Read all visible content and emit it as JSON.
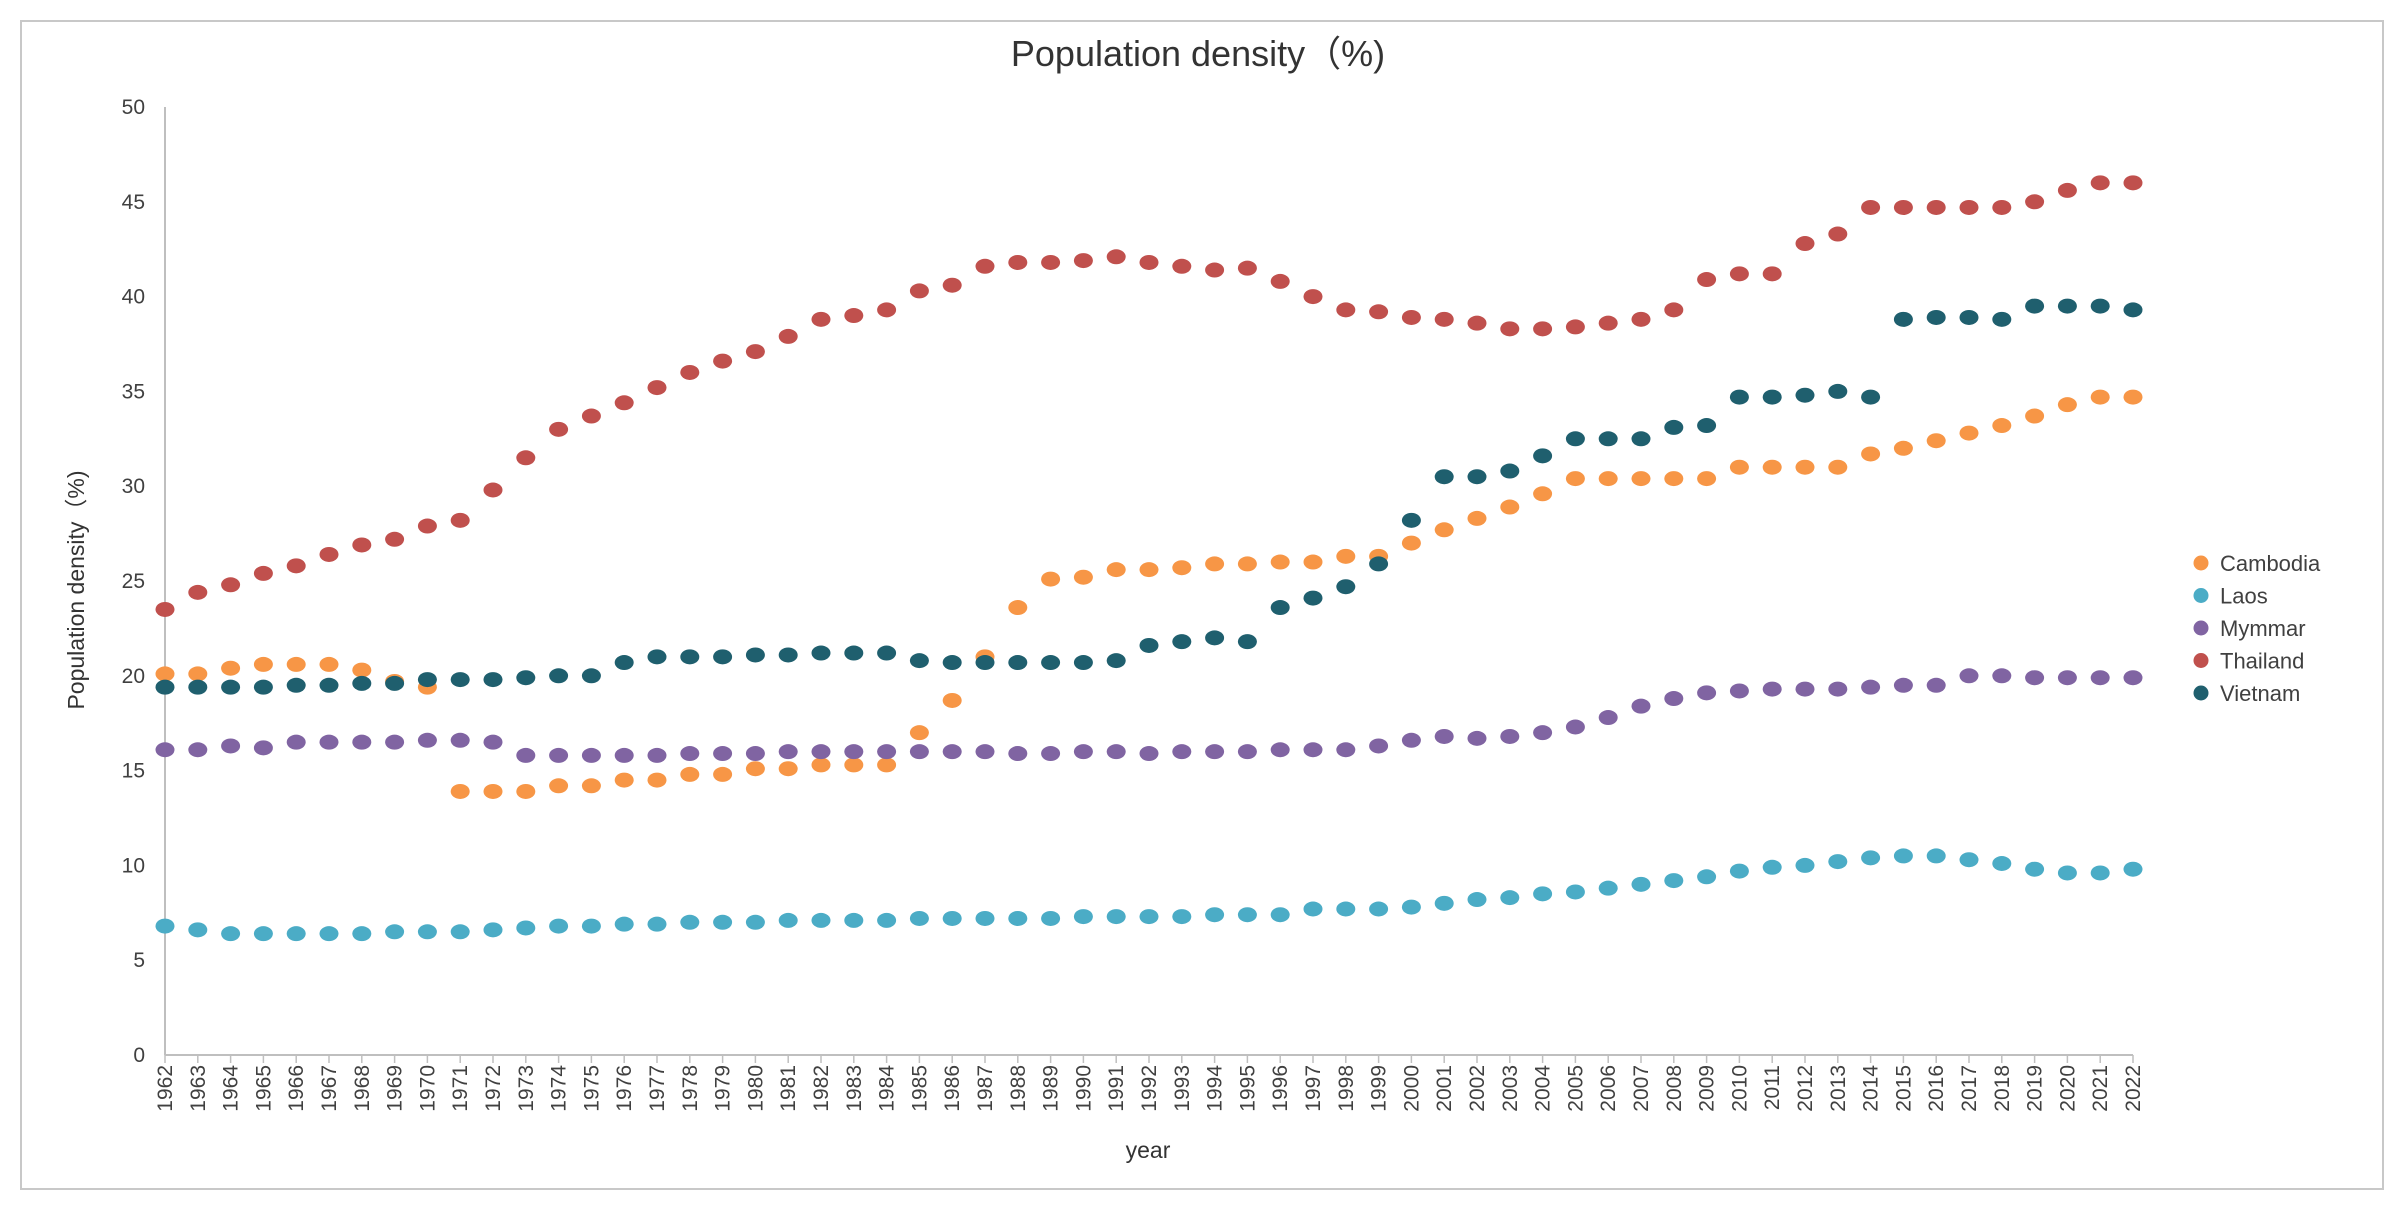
{
  "chart_data": {
    "type": "scatter",
    "title": "Population density（%)",
    "xlabel": "year",
    "ylabel": "Population density（%)",
    "ylim": [
      0,
      50
    ],
    "yticks": [
      0,
      5,
      10,
      15,
      20,
      25,
      30,
      35,
      40,
      45,
      50
    ],
    "legend_position": "right",
    "grid": false,
    "x": [
      1962,
      1963,
      1964,
      1965,
      1966,
      1967,
      1968,
      1969,
      1970,
      1971,
      1972,
      1973,
      1974,
      1975,
      1976,
      1977,
      1978,
      1979,
      1980,
      1981,
      1982,
      1983,
      1984,
      1985,
      1986,
      1987,
      1988,
      1989,
      1990,
      1991,
      1992,
      1993,
      1994,
      1995,
      1996,
      1997,
      1998,
      1999,
      2000,
      2001,
      2002,
      2003,
      2004,
      2005,
      2006,
      2007,
      2008,
      2009,
      2010,
      2011,
      2012,
      2013,
      2014,
      2015,
      2016,
      2017,
      2018,
      2019,
      2020,
      2021,
      2022
    ],
    "series": [
      {
        "name": "Cambodia",
        "color": "#F79646",
        "values": [
          20.1,
          20.1,
          20.4,
          20.6,
          20.6,
          20.6,
          20.3,
          19.7,
          19.4,
          13.9,
          13.9,
          13.9,
          14.2,
          14.2,
          14.5,
          14.5,
          14.8,
          14.8,
          15.1,
          15.1,
          15.3,
          15.3,
          15.3,
          17,
          18.7,
          21,
          23.6,
          25.1,
          25.2,
          25.6,
          25.6,
          25.7,
          25.9,
          25.9,
          26,
          26,
          26.3,
          26.3,
          27,
          27.7,
          28.3,
          28.9,
          29.6,
          30.4,
          30.4,
          30.4,
          30.4,
          30.4,
          31,
          31,
          31,
          31,
          31.7,
          32,
          32.4,
          32.8,
          33.2,
          33.7,
          34.3,
          34.7,
          34.7
        ]
      },
      {
        "name": "Laos",
        "color": "#4BACC6",
        "values": [
          6.8,
          6.6,
          6.4,
          6.4,
          6.4,
          6.4,
          6.4,
          6.5,
          6.5,
          6.5,
          6.6,
          6.7,
          6.8,
          6.8,
          6.9,
          6.9,
          7,
          7,
          7,
          7.1,
          7.1,
          7.1,
          7.1,
          7.2,
          7.2,
          7.2,
          7.2,
          7.2,
          7.3,
          7.3,
          7.3,
          7.3,
          7.4,
          7.4,
          7.4,
          7.7,
          7.7,
          7.7,
          7.8,
          8,
          8.2,
          8.3,
          8.5,
          8.6,
          8.8,
          9,
          9.2,
          9.4,
          9.7,
          9.9,
          10,
          10.2,
          10.4,
          10.5,
          10.5,
          10.3,
          10.1,
          9.8,
          9.6,
          9.6,
          9.8
        ]
      },
      {
        "name": "Mymmar",
        "color": "#8064A2",
        "values": [
          16.1,
          16.1,
          16.3,
          16.2,
          16.5,
          16.5,
          16.5,
          16.5,
          16.6,
          16.6,
          16.5,
          15.8,
          15.8,
          15.8,
          15.8,
          15.8,
          15.9,
          15.9,
          15.9,
          16,
          16,
          16,
          16,
          16,
          16,
          16,
          15.9,
          15.9,
          16,
          16,
          15.9,
          16,
          16,
          16,
          16.1,
          16.1,
          16.1,
          16.3,
          16.6,
          16.8,
          16.7,
          16.8,
          17,
          17.3,
          17.8,
          18.4,
          18.8,
          19.1,
          19.2,
          19.3,
          19.3,
          19.3,
          19.4,
          19.5,
          19.5,
          20,
          20,
          19.9,
          19.9,
          19.9,
          19.9
        ]
      },
      {
        "name": "Thailand",
        "color": "#C0504D",
        "values": [
          23.5,
          24.4,
          24.8,
          25.4,
          25.8,
          26.4,
          26.9,
          27.2,
          27.9,
          28.2,
          29.8,
          31.5,
          33,
          33.7,
          34.4,
          35.2,
          36,
          36.6,
          37.1,
          37.9,
          38.8,
          39,
          39.3,
          40.3,
          40.6,
          41.6,
          41.8,
          41.8,
          41.9,
          42.1,
          41.8,
          41.6,
          41.4,
          41.5,
          40.8,
          40,
          39.3,
          39.2,
          38.9,
          38.8,
          38.6,
          38.3,
          38.3,
          38.4,
          38.6,
          38.8,
          39.3,
          40.9,
          41.2,
          41.2,
          42.8,
          43.3,
          44.7,
          44.7,
          44.7,
          44.7,
          44.7,
          45,
          45.6,
          46,
          46
        ]
      },
      {
        "name": "Vietnam",
        "color": "#1F5F6E",
        "values": [
          19.4,
          19.4,
          19.4,
          19.4,
          19.5,
          19.5,
          19.6,
          19.6,
          19.8,
          19.8,
          19.8,
          19.9,
          20,
          20,
          20.7,
          21,
          21,
          21,
          21.1,
          21.1,
          21.2,
          21.2,
          21.2,
          20.8,
          20.7,
          20.7,
          20.7,
          20.7,
          20.7,
          20.8,
          21.6,
          21.8,
          22,
          21.8,
          23.6,
          24.1,
          24.7,
          25.9,
          28.2,
          30.5,
          30.5,
          30.8,
          31.6,
          32.5,
          32.5,
          32.5,
          33.1,
          33.2,
          34.7,
          34.7,
          34.8,
          35,
          34.7,
          38.8,
          38.9,
          38.9,
          38.8,
          39.5,
          39.5,
          39.5,
          39.3
        ]
      }
    ]
  }
}
